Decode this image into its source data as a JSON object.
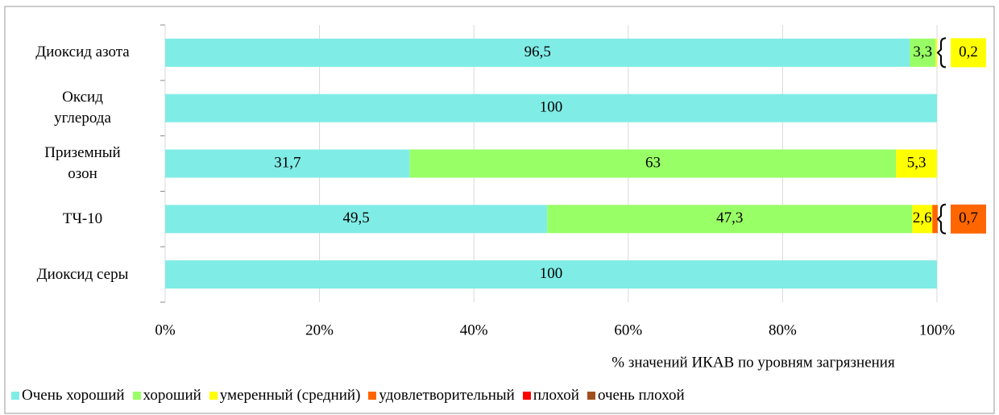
{
  "chart_data": {
    "type": "stacked_bar_horizontal",
    "categories": [
      "Диоксид азота",
      "Оксид\nуглерода",
      "Приземный\nозон",
      "ТЧ-10",
      "Диоксид серы"
    ],
    "series": [
      {
        "name": "Очень хороший",
        "color": "#80ece6",
        "values": [
          96.5,
          100,
          31.7,
          49.5,
          100
        ],
        "value_labels": [
          "96,5",
          "100",
          "31,7",
          "49,5",
          "100"
        ]
      },
      {
        "name": "хороший",
        "color": "#99ff66",
        "values": [
          3.3,
          0,
          63,
          47.3,
          0
        ],
        "value_labels": [
          "3,3",
          null,
          "63",
          "47,3",
          null
        ]
      },
      {
        "name": "умеренный (средний)",
        "color": "#ffff00",
        "values": [
          0.2,
          0,
          5.3,
          2.6,
          0
        ],
        "value_labels": [
          "0,2",
          null,
          "5,3",
          "2,6",
          null
        ]
      },
      {
        "name": "удовлетворительный",
        "color": "#ff6600",
        "values": [
          0,
          0,
          0,
          0.7,
          0
        ],
        "value_labels": [
          null,
          null,
          null,
          "0,7",
          null
        ]
      },
      {
        "name": "плохой",
        "color": "#ff0000",
        "values": [
          0,
          0,
          0,
          0,
          0
        ]
      },
      {
        "name": "очень плохой",
        "color": "#a0501e",
        "values": [
          0,
          0,
          0,
          0,
          0
        ]
      }
    ],
    "xlim": [
      0,
      100
    ],
    "xticks": [
      {
        "value": 0,
        "label": "0%"
      },
      {
        "value": 20,
        "label": "20%"
      },
      {
        "value": 40,
        "label": "40%"
      },
      {
        "value": 60,
        "label": "60%"
      },
      {
        "value": 80,
        "label": "80%"
      },
      {
        "value": 100,
        "label": "100%"
      }
    ],
    "x_label": "% значений ИКАВ по уровням загрязнения",
    "legend": "bottom"
  }
}
